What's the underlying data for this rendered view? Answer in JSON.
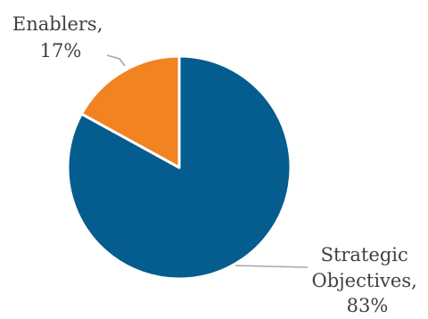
{
  "chart_data": {
    "type": "pie",
    "title": "",
    "legend": "none",
    "start_angle_deg": 0,
    "direction": "clockwise",
    "slices": [
      {
        "name": "Strategic Objectives",
        "value": 83,
        "label_lines": [
          "Strategic",
          "Objectives,",
          "83%"
        ],
        "color": "#055C8F"
      },
      {
        "name": "Enablers",
        "value": 17,
        "label_lines": [
          "Enablers,",
          "17%"
        ],
        "color": "#F28321"
      }
    ],
    "slice_border_color": "#FFFFFF",
    "leader_line_color": "#A6A6A6",
    "label_color": "#404040"
  }
}
